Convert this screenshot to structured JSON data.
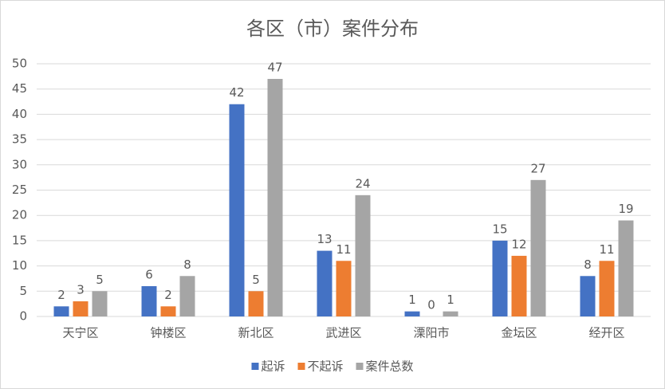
{
  "chart_data": {
    "type": "bar",
    "title": "各区（市）案件分布",
    "categories": [
      "天宁区",
      "钟楼区",
      "新北区",
      "武进区",
      "溧阳市",
      "金坛区",
      "经开区"
    ],
    "series": [
      {
        "name": "起诉",
        "color": "#4472c4",
        "values": [
          2,
          6,
          42,
          13,
          1,
          15,
          8
        ]
      },
      {
        "name": "不起诉",
        "color": "#ed7d31",
        "values": [
          3,
          2,
          5,
          11,
          0,
          12,
          11
        ]
      },
      {
        "name": "案件总数",
        "color": "#a5a5a5",
        "values": [
          5,
          8,
          47,
          24,
          1,
          27,
          19
        ]
      }
    ],
    "ylim": [
      0,
      50
    ],
    "yticks": [
      0,
      5,
      10,
      15,
      20,
      25,
      30,
      35,
      40,
      45,
      50
    ],
    "grid": true,
    "legend": "bottom"
  }
}
